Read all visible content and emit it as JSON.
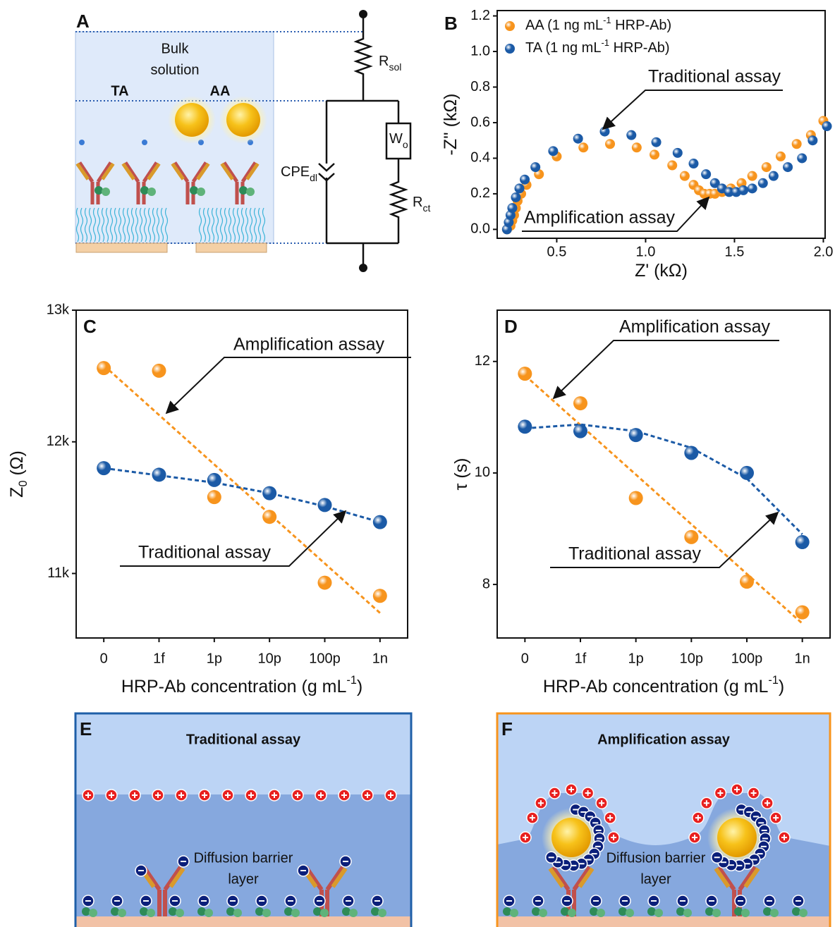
{
  "chart_data": [
    {
      "type": "scatter",
      "label": "B",
      "xlabel": {
        "text": "Z' (kΩ)"
      },
      "ylabel": {
        "text": "-Z'' (kΩ)"
      },
      "xlim": [
        0.165,
        2.01
      ],
      "xticks": [
        0.5,
        {
          "value": 1,
          "label": "1.0"
        },
        1.5,
        {
          "value": 2,
          "label": "2.0"
        }
      ],
      "ylim": [
        -0.05,
        1.23
      ],
      "yticks": [
        {
          "value": 0,
          "label": "0.0"
        },
        0.2,
        0.4,
        0.6,
        0.8,
        {
          "value": 1,
          "label": "1.0"
        },
        1.2
      ],
      "legend": "upper left",
      "series": [
        {
          "name": {
            "text": "AA (1 ng mL",
            "sup": "-1",
            "tail": " HRP-Ab)"
          },
          "color": "#f7941d",
          "x": [
            0.22,
            0.24,
            0.25,
            0.26,
            0.27,
            0.28,
            0.3,
            0.33,
            0.4,
            0.5,
            0.65,
            0.8,
            0.95,
            1.05,
            1.15,
            1.22,
            1.27,
            1.3,
            1.33,
            1.36,
            1.39,
            1.43,
            1.48,
            1.54,
            1.6,
            1.68,
            1.76,
            1.85,
            1.93,
            2.0
          ],
          "values": [
            0.0,
            0.02,
            0.05,
            0.08,
            0.12,
            0.16,
            0.2,
            0.25,
            0.31,
            0.41,
            0.46,
            0.48,
            0.46,
            0.42,
            0.36,
            0.3,
            0.25,
            0.22,
            0.2,
            0.2,
            0.2,
            0.21,
            0.23,
            0.26,
            0.3,
            0.35,
            0.41,
            0.48,
            0.53,
            0.61
          ]
        },
        {
          "name": {
            "text": "TA (1 ng mL",
            "sup": "-1",
            "tail": " HRP-Ab)"
          },
          "color": "#1b5aa6",
          "x": [
            0.22,
            0.23,
            0.24,
            0.25,
            0.27,
            0.29,
            0.32,
            0.38,
            0.48,
            0.62,
            0.77,
            0.92,
            1.06,
            1.18,
            1.27,
            1.34,
            1.39,
            1.43,
            1.47,
            1.51,
            1.55,
            1.6,
            1.66,
            1.72,
            1.8,
            1.88,
            1.94,
            2.02
          ],
          "values": [
            0.0,
            0.04,
            0.08,
            0.12,
            0.18,
            0.23,
            0.28,
            0.35,
            0.44,
            0.51,
            0.55,
            0.53,
            0.49,
            0.43,
            0.37,
            0.31,
            0.26,
            0.23,
            0.21,
            0.21,
            0.22,
            0.23,
            0.26,
            0.3,
            0.35,
            0.4,
            0.5,
            0.58
          ]
        }
      ],
      "annotations": [
        {
          "text": "Traditional assay",
          "color": "#1f5fa8"
        },
        {
          "text": "Amplification assay",
          "color": "#f7941d"
        }
      ]
    },
    {
      "type": "scatter",
      "label": "C",
      "categories": [
        "0",
        "1f",
        "1p",
        "10p",
        "100p",
        "1n"
      ],
      "xlabel": {
        "text": "HRP-Ab concentration (g mL",
        "sup": "-1",
        "tail": ")"
      },
      "ylabel": {
        "text": "Z",
        "sub": "0",
        "tail": " (Ω)"
      },
      "ylim": [
        10510,
        13000
      ],
      "yticks": [
        {
          "value": 11000,
          "label": "11k"
        },
        {
          "value": 12000,
          "label": "12k"
        },
        {
          "value": 13000,
          "label": "13k"
        }
      ],
      "series": [
        {
          "color": "#f7941d",
          "values": [
            12560,
            12540,
            11580,
            11430,
            10930,
            10830
          ],
          "fit": [
            12580,
            12204,
            11828,
            11452,
            11076,
            10700
          ]
        },
        {
          "color": "#1b5aa6",
          "values": [
            11800,
            11750,
            11710,
            11610,
            11520,
            11390
          ],
          "fit": [
            11800,
            11745,
            11690,
            11610,
            11510,
            11390
          ]
        }
      ],
      "annotations": [
        {
          "text": "Amplification assay",
          "color": "#f7941d"
        },
        {
          "text": "Traditional assay",
          "color": "#1f5fa8"
        }
      ]
    },
    {
      "type": "scatter",
      "label": "D",
      "categories": [
        "0",
        "1f",
        "1p",
        "10p",
        "100p",
        "1n"
      ],
      "xlabel": {
        "text": "HRP-Ab concentration (g mL",
        "sup": "-1",
        "tail": ")"
      },
      "ylabel": {
        "text": "τ (s)"
      },
      "ylim": [
        7.04,
        12.92
      ],
      "yticks": [
        8,
        10,
        12
      ],
      "series": [
        {
          "color": "#f7941d",
          "values": [
            11.78,
            11.25,
            9.55,
            8.85,
            8.05,
            7.5
          ],
          "fit": [
            11.75,
            10.86,
            9.97,
            9.08,
            8.19,
            7.3
          ]
        },
        {
          "color": "#1b5aa6",
          "values": [
            10.83,
            10.75,
            10.68,
            10.36,
            10.0,
            8.76
          ],
          "fit": [
            10.8,
            10.87,
            10.75,
            10.45,
            9.9,
            8.9
          ]
        }
      ],
      "annotations": [
        {
          "text": "Amplification assay",
          "color": "#f7941d"
        },
        {
          "text": "Traditional assay",
          "color": "#1f5fa8"
        }
      ]
    }
  ],
  "diagrams": {
    "A": {
      "label": "A",
      "bulk": [
        "Bulk",
        "solution"
      ],
      "ta": "TA",
      "aa": "AA",
      "r_sol": {
        "text": "R",
        "sub": "sol"
      },
      "cpe": {
        "text": "CPE",
        "sub": "dl"
      },
      "w": {
        "text": "W",
        "sub": "o"
      },
      "r_ct": {
        "text": "R",
        "sub": "ct"
      }
    },
    "E": {
      "label": "E",
      "title": "Traditional assay",
      "layer": [
        "Diffusion barrier",
        "layer"
      ]
    },
    "F": {
      "label": "F",
      "title": "Amplification assay",
      "layer": [
        "Diffusion barrier",
        "layer"
      ]
    }
  }
}
